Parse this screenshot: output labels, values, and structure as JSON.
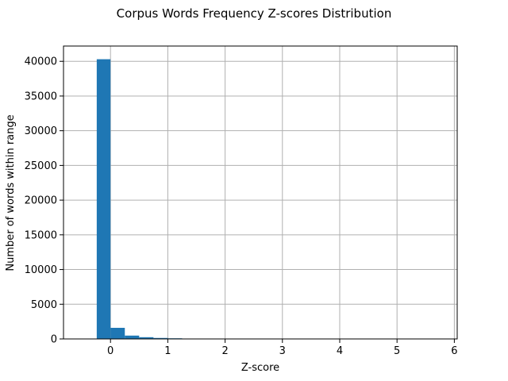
{
  "chart_data": {
    "type": "bar",
    "title": "Corpus Words Frequency Z-scores Distribution",
    "xlabel": "Z-score",
    "ylabel": "Number of words within range",
    "xlim": [
      -0.82,
      6.05
    ],
    "ylim": [
      0,
      42200
    ],
    "grid": true,
    "bar_color": "#1f77b4",
    "x_ticks": [
      0,
      1,
      2,
      3,
      4,
      5,
      6
    ],
    "x_tick_labels": [
      "0",
      "1",
      "2",
      "3",
      "4",
      "5",
      "6"
    ],
    "y_ticks": [
      0,
      5000,
      10000,
      15000,
      20000,
      25000,
      30000,
      35000,
      40000
    ],
    "y_tick_labels": [
      "0",
      "5000",
      "10000",
      "15000",
      "20000",
      "25000",
      "30000",
      "35000",
      "40000"
    ],
    "bins": [
      {
        "x0": -0.24,
        "x1": 0.0,
        "value": 40300
      },
      {
        "x0": 0.0,
        "x1": 0.25,
        "value": 1600
      },
      {
        "x0": 0.25,
        "x1": 0.5,
        "value": 480
      },
      {
        "x0": 0.5,
        "x1": 0.75,
        "value": 250
      },
      {
        "x0": 0.75,
        "x1": 1.0,
        "value": 140
      },
      {
        "x0": 1.0,
        "x1": 1.25,
        "value": 90
      },
      {
        "x0": 1.25,
        "x1": 1.5,
        "value": 50
      },
      {
        "x0": 1.5,
        "x1": 1.75,
        "value": 35
      },
      {
        "x0": 1.75,
        "x1": 2.0,
        "value": 25
      },
      {
        "x0": 2.0,
        "x1": 2.25,
        "value": 18
      },
      {
        "x0": 2.25,
        "x1": 2.5,
        "value": 12
      },
      {
        "x0": 2.5,
        "x1": 2.75,
        "value": 9
      },
      {
        "x0": 2.75,
        "x1": 3.0,
        "value": 7
      },
      {
        "x0": 3.0,
        "x1": 3.25,
        "value": 5
      },
      {
        "x0": 3.25,
        "x1": 3.5,
        "value": 4
      },
      {
        "x0": 3.5,
        "x1": 3.75,
        "value": 3
      },
      {
        "x0": 3.75,
        "x1": 4.0,
        "value": 3
      },
      {
        "x0": 4.0,
        "x1": 4.25,
        "value": 2
      },
      {
        "x0": 4.25,
        "x1": 4.5,
        "value": 2
      },
      {
        "x0": 4.5,
        "x1": 4.75,
        "value": 1
      },
      {
        "x0": 4.75,
        "x1": 5.0,
        "value": 1
      },
      {
        "x0": 5.0,
        "x1": 5.25,
        "value": 1
      },
      {
        "x0": 5.25,
        "x1": 5.5,
        "value": 1
      },
      {
        "x0": 5.5,
        "x1": 5.75,
        "value": 1
      }
    ]
  }
}
